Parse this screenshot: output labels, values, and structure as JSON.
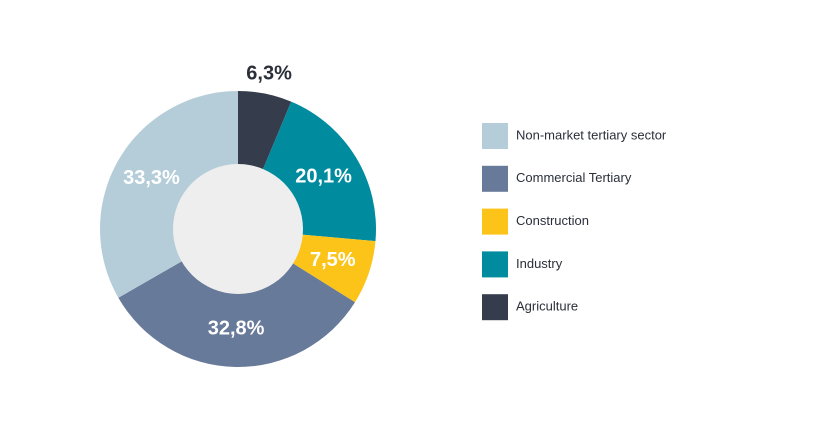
{
  "chart_data": {
    "type": "donut",
    "categories": [
      "Non-market tertiary sector",
      "Commercial Tertiary",
      "Construction",
      "Industry",
      "Agriculture"
    ],
    "values": [
      33.3,
      32.8,
      7.5,
      20.1,
      6.3
    ],
    "value_labels": [
      "33,3%",
      "32,8%",
      "7,5%",
      "20,1%",
      "6,3%"
    ],
    "colors": [
      "#b5cdd9",
      "#687a9a",
      "#fcc419",
      "#008b9e",
      "#353d4c"
    ],
    "legend": "right"
  }
}
